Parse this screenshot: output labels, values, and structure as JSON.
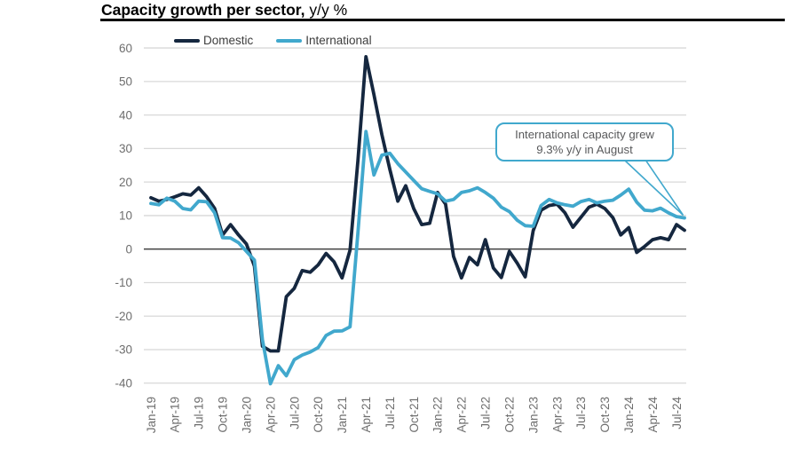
{
  "title": {
    "bold": "Capacity growth per sector,",
    "regular": " y/y %"
  },
  "legend": {
    "items": [
      {
        "label": "Domestic",
        "color": "#15273f"
      },
      {
        "label": "International",
        "color": "#41a8cd"
      }
    ]
  },
  "annotation": {
    "line1": "International capacity grew",
    "line2": "9.3% y/y in August"
  },
  "colors": {
    "domestic": "#15273f",
    "international": "#41a8cd",
    "grid": "#d8d8d8",
    "zero_line": "#4d4d4d",
    "axis_text": "#6e6e6e",
    "annotation_border": "#41a8cd",
    "annotation_text": "#58595b",
    "legend_text": "#3d3d3d",
    "title_text": "#000000"
  },
  "chart_data": {
    "type": "line",
    "title": "Capacity growth per sector, y/y %",
    "x_frequency": "monthly",
    "x_start": "Jan-19",
    "x_end": "Aug-24",
    "x_tick_labels": [
      "Jan-19",
      "Apr-19",
      "Jul-19",
      "Oct-19",
      "Jan-20",
      "Apr-20",
      "Jul-20",
      "Oct-20",
      "Jan-21",
      "Apr-21",
      "Jul-21",
      "Oct-21",
      "Jan-22",
      "Apr-22",
      "Jul-22",
      "Oct-22",
      "Jan-23",
      "Apr-23",
      "Jul-23",
      "Oct-23",
      "Jan-24",
      "Apr-24",
      "Jul-24"
    ],
    "ylim": [
      -40,
      60
    ],
    "yticks": [
      60,
      50,
      40,
      30,
      20,
      10,
      0,
      -10,
      -20,
      -30,
      -40
    ],
    "grid": "horizontal",
    "legend_position": "top-left",
    "series": [
      {
        "name": "Domestic",
        "color": "#15273f",
        "values": [
          15.3,
          14.3,
          14.8,
          15.6,
          16.5,
          16.1,
          18.3,
          15.6,
          12.1,
          4.2,
          7.3,
          4.2,
          1.5,
          -5.1,
          -29.0,
          -30.4,
          -30.4,
          -14.2,
          -11.7,
          -6.4,
          -6.9,
          -4.7,
          -1.3,
          -3.8,
          -8.6,
          -0.3,
          26.5,
          57.4,
          46.1,
          34.2,
          23.8,
          14.3,
          18.9,
          12.1,
          7.3,
          7.7,
          16.9,
          13.4,
          -2.2,
          -8.6,
          -2.5,
          -4.7,
          2.8,
          -5.6,
          -8.5,
          -0.7,
          -4.2,
          -8.3,
          5.5,
          11.6,
          13.0,
          13.4,
          10.8,
          6.5,
          9.5,
          12.5,
          13.4,
          12.1,
          9.4,
          4.2,
          6.4,
          -1.0,
          0.8,
          2.8,
          3.4,
          2.8,
          7.3,
          5.6
        ]
      },
      {
        "name": "International",
        "color": "#41a8cd",
        "values": [
          13.6,
          13.2,
          15.2,
          14.3,
          12.1,
          11.7,
          14.3,
          14.1,
          10.8,
          3.4,
          3.3,
          1.9,
          -0.7,
          -3.3,
          -27.0,
          -40.2,
          -34.8,
          -37.8,
          -33.0,
          -31.6,
          -30.7,
          -29.4,
          -25.8,
          -24.5,
          -24.4,
          -23.2,
          5.0,
          35.1,
          22.1,
          28.0,
          28.6,
          25.5,
          23.0,
          20.5,
          18.0,
          17.2,
          16.5,
          14.3,
          14.8,
          16.9,
          17.4,
          18.3,
          16.9,
          15.2,
          12.5,
          11.2,
          8.6,
          7.0,
          6.8,
          13.0,
          14.8,
          13.8,
          13.2,
          12.8,
          14.2,
          14.8,
          13.8,
          14.3,
          14.6,
          16.1,
          17.9,
          14.0,
          11.6,
          11.4,
          12.2,
          10.8,
          9.7,
          9.3
        ]
      }
    ],
    "annotation": {
      "text": "International capacity grew 9.3% y/y in August",
      "points_to": {
        "series": "International",
        "month": "Aug-24",
        "value": 9.3
      }
    }
  }
}
